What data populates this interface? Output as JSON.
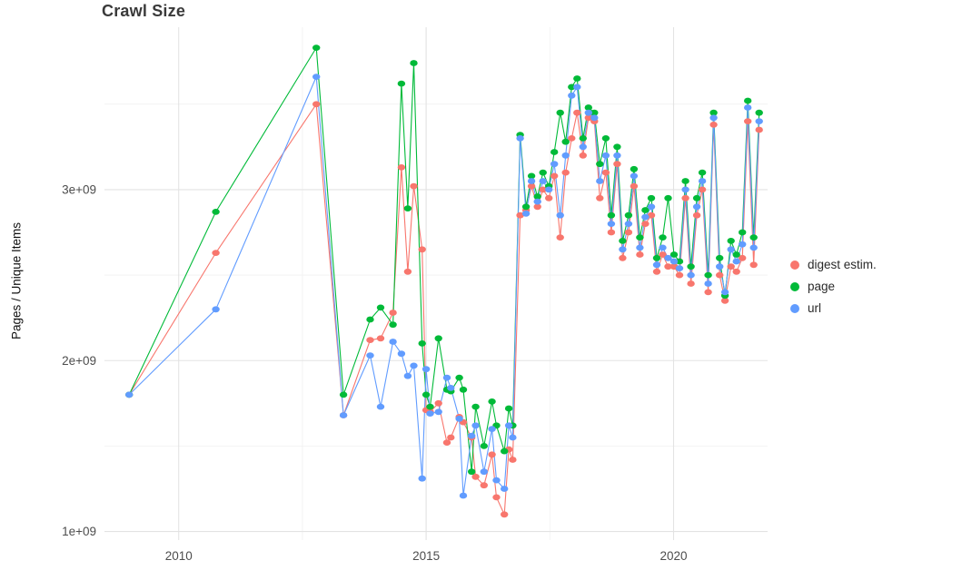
{
  "chart_data": {
    "type": "line",
    "title": "Crawl Size",
    "ylabel": "Pages / Unique Items",
    "xlabel": "",
    "y_scale": 1000000000,
    "legend_position": "right",
    "grid": true,
    "style": {
      "background": "#ffffff",
      "grid_major": "#e3e3e3",
      "grid_minor": "#f2f2f2",
      "tick_label_color": "#4d4d4d",
      "title_color": "#3a3a3a"
    },
    "axes": {
      "xlim": [
        2008.5,
        2021.9
      ],
      "ylim": [
        0.95,
        3.95
      ],
      "x_ticks": [
        {
          "value": 2010,
          "label": "2010"
        },
        {
          "value": 2015,
          "label": "2015"
        },
        {
          "value": 2020,
          "label": "2020"
        }
      ],
      "x_minor": [
        2012.5,
        2017.5
      ],
      "y_ticks": [
        {
          "value": 1,
          "label": "1e+09"
        },
        {
          "value": 2,
          "label": "2e+09"
        },
        {
          "value": 3,
          "label": "3e+09"
        }
      ],
      "y_minor": [
        1.5,
        2.5,
        3.5
      ]
    },
    "x": [
      2009.0,
      2010.75,
      2012.78,
      2013.33,
      2013.87,
      2014.08,
      2014.33,
      2014.5,
      2014.63,
      2014.75,
      2014.92,
      2015.0,
      2015.08,
      2015.25,
      2015.42,
      2015.5,
      2015.67,
      2015.75,
      2015.92,
      2016.0,
      2016.17,
      2016.33,
      2016.42,
      2016.58,
      2016.67,
      2016.75,
      2016.9,
      2017.02,
      2017.13,
      2017.25,
      2017.36,
      2017.48,
      2017.59,
      2017.71,
      2017.82,
      2017.94,
      2018.05,
      2018.17,
      2018.28,
      2018.4,
      2018.51,
      2018.63,
      2018.74,
      2018.86,
      2018.97,
      2019.09,
      2019.2,
      2019.32,
      2019.43,
      2019.55,
      2019.66,
      2019.78,
      2019.89,
      2020.01,
      2020.12,
      2020.24,
      2020.35,
      2020.47,
      2020.58,
      2020.7,
      2020.81,
      2020.93,
      2021.04,
      2021.16,
      2021.27,
      2021.39,
      2021.5,
      2021.62,
      2021.73
    ],
    "series": [
      {
        "name": "digest estim.",
        "slug": "digest-estim",
        "color": "#F8766D",
        "values": [
          1.8,
          2.63,
          3.5,
          1.68,
          2.12,
          2.13,
          2.28,
          3.13,
          2.52,
          3.02,
          2.65,
          1.71,
          1.7,
          1.75,
          1.52,
          1.55,
          1.67,
          1.64,
          1.55,
          1.32,
          1.27,
          1.45,
          1.2,
          1.1,
          1.48,
          1.42,
          2.85,
          2.88,
          3.02,
          2.9,
          3.0,
          2.95,
          3.08,
          2.72,
          3.1,
          3.3,
          3.45,
          3.2,
          3.42,
          3.4,
          2.95,
          3.1,
          2.75,
          3.15,
          2.6,
          2.75,
          3.02,
          2.62,
          2.8,
          2.85,
          2.52,
          2.62,
          2.55,
          2.55,
          2.5,
          2.95,
          2.45,
          2.85,
          3.0,
          2.4,
          3.38,
          2.5,
          2.35,
          2.55,
          2.52,
          2.6,
          3.4,
          2.56,
          3.35
        ]
      },
      {
        "name": "page",
        "slug": "page",
        "color": "#00BA38",
        "values": [
          1.8,
          2.87,
          3.83,
          1.8,
          2.24,
          2.31,
          2.21,
          3.62,
          2.89,
          3.74,
          2.1,
          1.8,
          1.73,
          2.13,
          1.83,
          1.82,
          1.9,
          1.83,
          1.35,
          1.73,
          1.5,
          1.76,
          1.62,
          1.47,
          1.72,
          1.62,
          3.32,
          2.9,
          3.08,
          2.96,
          3.1,
          3.02,
          3.22,
          3.45,
          3.28,
          3.6,
          3.65,
          3.3,
          3.48,
          3.45,
          3.15,
          3.3,
          2.85,
          3.25,
          2.7,
          2.85,
          3.12,
          2.72,
          2.88,
          2.95,
          2.6,
          2.72,
          2.95,
          2.62,
          2.58,
          3.05,
          2.55,
          2.95,
          3.1,
          2.5,
          3.45,
          2.6,
          2.38,
          2.7,
          2.62,
          2.75,
          3.52,
          2.72,
          3.45
        ]
      },
      {
        "name": "url",
        "slug": "url",
        "color": "#619CFF",
        "values": [
          1.8,
          2.3,
          3.66,
          1.68,
          2.03,
          1.73,
          2.11,
          2.04,
          1.91,
          1.97,
          1.31,
          1.95,
          1.69,
          1.7,
          1.9,
          1.84,
          1.66,
          1.21,
          1.56,
          1.62,
          1.35,
          1.6,
          1.3,
          1.25,
          1.62,
          1.55,
          3.3,
          2.86,
          3.05,
          2.93,
          3.05,
          3.0,
          3.15,
          2.85,
          3.2,
          3.55,
          3.6,
          3.25,
          3.45,
          3.42,
          3.05,
          3.2,
          2.8,
          3.2,
          2.65,
          2.8,
          3.08,
          2.66,
          2.84,
          2.9,
          2.56,
          2.66,
          2.6,
          2.58,
          2.54,
          3.0,
          2.5,
          2.9,
          3.05,
          2.45,
          3.42,
          2.55,
          2.4,
          2.65,
          2.58,
          2.68,
          3.48,
          2.66,
          3.4
        ]
      }
    ]
  }
}
